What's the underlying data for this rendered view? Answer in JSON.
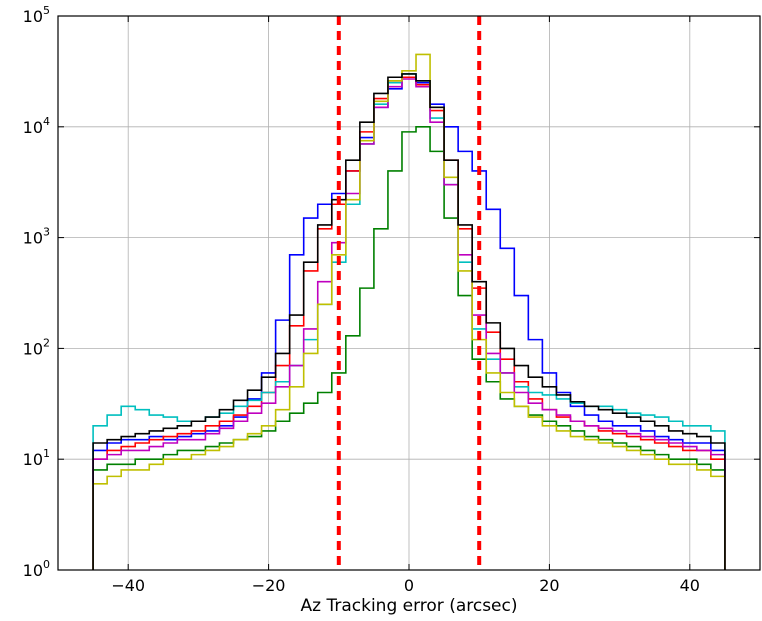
{
  "chart_data": {
    "type": "line",
    "subtype": "step-histogram",
    "title": "",
    "xlabel": "Az Tracking error (arcsec)",
    "ylabel": "",
    "xlim": [
      -50,
      50
    ],
    "ylim": [
      1,
      100000
    ],
    "yscale": "log",
    "grid": true,
    "legend": "none",
    "x_ticks": [
      {
        "value": -40,
        "label": "−40"
      },
      {
        "value": -20,
        "label": "−20"
      },
      {
        "value": 0,
        "label": "0"
      },
      {
        "value": 20,
        "label": "20"
      },
      {
        "value": 40,
        "label": "40"
      }
    ],
    "y_ticks": [
      {
        "value": 1,
        "base": "10",
        "exp": "0"
      },
      {
        "value": 10,
        "base": "10",
        "exp": "1"
      },
      {
        "value": 100,
        "base": "10",
        "exp": "2"
      },
      {
        "value": 1000,
        "base": "10",
        "exp": "3"
      },
      {
        "value": 10000,
        "base": "10",
        "exp": "4"
      },
      {
        "value": 100000,
        "base": "10",
        "exp": "5"
      }
    ],
    "x": [
      -44,
      -42,
      -40,
      -38,
      -36,
      -34,
      -32,
      -30,
      -28,
      -26,
      -24,
      -22,
      -20,
      -18,
      -16,
      -14,
      -12,
      -10,
      -8,
      -6,
      -4,
      -2,
      0,
      2,
      4,
      6,
      8,
      10,
      12,
      14,
      16,
      18,
      20,
      22,
      24,
      26,
      28,
      30,
      32,
      34,
      36,
      38,
      40,
      42,
      44
    ],
    "series": [
      {
        "color": "#0000ff",
        "values": [
          12,
          14,
          15,
          15,
          16,
          15,
          16,
          17,
          18,
          20,
          24,
          35,
          60,
          180,
          700,
          1500,
          2000,
          2500,
          4000,
          8000,
          15000,
          22000,
          28000,
          25000,
          16000,
          10000,
          6000,
          4000,
          1800,
          800,
          300,
          120,
          60,
          40,
          30,
          25,
          22,
          20,
          20,
          18,
          16,
          15,
          14,
          14,
          12
        ]
      },
      {
        "color": "#008000",
        "values": [
          8,
          9,
          9,
          10,
          10,
          11,
          12,
          12,
          13,
          14,
          15,
          16,
          18,
          22,
          26,
          32,
          40,
          60,
          130,
          350,
          1200,
          4000,
          9000,
          10000,
          6000,
          1500,
          300,
          80,
          50,
          35,
          30,
          25,
          22,
          20,
          18,
          16,
          15,
          14,
          13,
          12,
          11,
          10,
          10,
          9,
          8
        ]
      },
      {
        "color": "#ff0000",
        "values": [
          10,
          12,
          13,
          14,
          15,
          16,
          17,
          18,
          20,
          22,
          25,
          30,
          40,
          70,
          160,
          500,
          1200,
          2000,
          4000,
          9000,
          18000,
          25000,
          28000,
          24000,
          14000,
          5000,
          1200,
          350,
          140,
          80,
          50,
          35,
          28,
          24,
          22,
          20,
          18,
          17,
          16,
          15,
          14,
          13,
          12,
          12,
          10
        ]
      },
      {
        "color": "#00bfbf",
        "values": [
          20,
          25,
          30,
          28,
          25,
          24,
          22,
          22,
          24,
          26,
          30,
          34,
          40,
          50,
          70,
          120,
          250,
          600,
          2000,
          7000,
          16000,
          25000,
          30000,
          26000,
          12000,
          3000,
          600,
          150,
          80,
          60,
          45,
          40,
          38,
          35,
          32,
          30,
          30,
          28,
          26,
          25,
          24,
          22,
          20,
          20,
          18
        ]
      },
      {
        "color": "#bf00bf",
        "values": [
          10,
          11,
          12,
          12,
          13,
          14,
          15,
          15,
          17,
          19,
          22,
          26,
          32,
          45,
          70,
          150,
          400,
          900,
          2500,
          7000,
          15000,
          23000,
          27000,
          23000,
          11000,
          3000,
          700,
          200,
          90,
          60,
          40,
          32,
          28,
          25,
          22,
          20,
          19,
          18,
          17,
          16,
          15,
          14,
          13,
          12,
          11
        ]
      },
      {
        "color": "#bfbf00",
        "values": [
          6,
          7,
          8,
          8,
          9,
          10,
          10,
          11,
          12,
          13,
          15,
          17,
          20,
          28,
          45,
          90,
          250,
          700,
          2200,
          7500,
          17000,
          26000,
          32000,
          45000,
          15000,
          3500,
          500,
          120,
          60,
          40,
          30,
          24,
          20,
          18,
          16,
          15,
          14,
          13,
          12,
          11,
          10,
          9,
          9,
          8,
          7
        ]
      },
      {
        "color": "#000000",
        "values": [
          14,
          15,
          16,
          17,
          18,
          19,
          20,
          22,
          24,
          28,
          34,
          42,
          55,
          90,
          200,
          600,
          1300,
          2200,
          5000,
          11000,
          20000,
          28000,
          30000,
          26000,
          15000,
          5000,
          1300,
          400,
          170,
          100,
          70,
          55,
          45,
          38,
          33,
          30,
          28,
          26,
          24,
          22,
          20,
          18,
          17,
          16,
          14
        ]
      }
    ]
  }
}
